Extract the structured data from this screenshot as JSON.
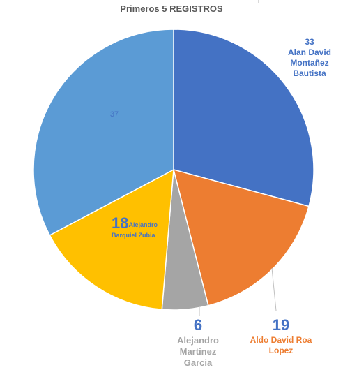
{
  "chart_data": {
    "type": "pie",
    "title": "Primeros 5 REGISTROS",
    "slices": [
      {
        "name": "Alan David Montañez Bautista",
        "value": 33,
        "color": "#4472C4"
      },
      {
        "name": "Aldo David Roa Lopez",
        "value": 19,
        "color": "#ED7D31"
      },
      {
        "name": "Alejandro Martinez Garcia",
        "value": 6,
        "color": "#A5A5A5"
      },
      {
        "name": "Alejandro Barquiel Zubia",
        "value": 18,
        "color": "#FFC000"
      },
      {
        "name": "",
        "value": 37,
        "color": "#5B9BD5"
      }
    ],
    "start_angle_deg": 0,
    "direction": "clockwise"
  },
  "labels": {
    "alan": {
      "value": "33",
      "name_lines": [
        "Alan David",
        "Montañez",
        "Bautista"
      ]
    },
    "aldo": {
      "value": "19",
      "name_lines": [
        "Aldo David Roa",
        "Lopez"
      ]
    },
    "martinez": {
      "value": "6",
      "name_lines": [
        "Alejandro",
        "Martinez",
        "Garcia"
      ]
    },
    "barquiel": {
      "value": "18",
      "name_lines": [
        "Alejandro",
        "Barquiel Zubia"
      ]
    },
    "last": {
      "value": "37"
    }
  }
}
